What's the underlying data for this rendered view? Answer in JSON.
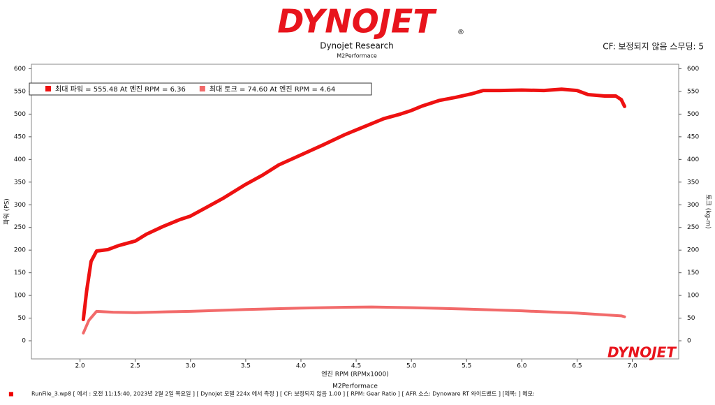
{
  "header": {
    "logo": "DYNOJET",
    "registered": "®",
    "company": "Dynojet Research",
    "subtitle": "M2Performace",
    "correction": "CF: 보정되지 않음 스무딩: 5"
  },
  "chart_data": {
    "type": "line",
    "xlabel": "엔진 RPM (RPMx1000)",
    "ylabel": "파워 (PS)",
    "y2label": "토크 (kg-m)",
    "below_label": "M2Performace",
    "watermark": "DYNOJET",
    "xlim": [
      1.56,
      7.42
    ],
    "ylim": [
      -40,
      610
    ],
    "y2lim": [
      -40,
      610
    ],
    "xticks": [
      {
        "value": 2,
        "label": "2.0"
      },
      2.5,
      {
        "value": 3,
        "label": "3.0"
      },
      3.5,
      {
        "value": 4,
        "label": "4.0"
      },
      4.5,
      {
        "value": 5,
        "label": "5.0"
      },
      5.5,
      {
        "value": 6,
        "label": "6.0"
      },
      6.5,
      {
        "value": 7,
        "label": "7.0"
      }
    ],
    "yticks": [
      0,
      50,
      100,
      150,
      200,
      250,
      300,
      350,
      400,
      450,
      500,
      550,
      600
    ],
    "y2ticks": [
      0,
      50,
      100,
      150,
      200,
      250,
      300,
      350,
      400,
      450,
      500,
      550,
      600
    ],
    "legend_position": "upper left",
    "series": [
      {
        "name": "최대 파워 = 555.48 At 엔진 RPM = 6.36",
        "color": "#ee1111",
        "width": 5,
        "axis": "y",
        "x": [
          2.03,
          2.06,
          2.1,
          2.15,
          2.25,
          2.35,
          2.5,
          2.6,
          2.75,
          2.9,
          3.0,
          3.15,
          3.3,
          3.5,
          3.65,
          3.8,
          4.0,
          4.2,
          4.4,
          4.6,
          4.75,
          4.9,
          5.0,
          5.1,
          5.25,
          5.4,
          5.55,
          5.65,
          5.8,
          6.0,
          6.2,
          6.36,
          6.5,
          6.6,
          6.75,
          6.85,
          6.9,
          6.93
        ],
        "values": [
          47,
          110,
          175,
          198,
          201,
          210,
          220,
          235,
          252,
          267,
          275,
          295,
          315,
          345,
          365,
          388,
          410,
          432,
          455,
          475,
          490,
          500,
          508,
          518,
          530,
          537,
          545,
          552,
          552,
          553,
          552,
          555,
          552,
          543,
          540,
          540,
          532,
          517
        ]
      },
      {
        "name": "최대 토크 = 74.60 At 엔진 RPM = 4.64",
        "color": "#f26a6a",
        "width": 4,
        "axis": "y2",
        "x": [
          2.03,
          2.08,
          2.15,
          2.3,
          2.5,
          2.8,
          3.0,
          3.5,
          4.0,
          4.4,
          4.64,
          5.0,
          5.5,
          6.0,
          6.5,
          6.9,
          6.93
        ],
        "values": [
          17,
          45,
          65,
          63,
          62,
          64,
          65,
          69,
          72,
          74,
          74.6,
          73,
          70,
          66,
          61,
          55,
          53
        ]
      }
    ]
  },
  "footer": {
    "text": "RunFile_3.wp8 [ 에서 : 오전 11:15:40, 2023년 2월 2일 목요일 ] [ Dynojet 모델 224x 에서 측정 ] [ CF: 보정되지 않음 1.00 ] [ RPM: Gear Ratio ] [ AFR 소스: Dynoware RT 와이드밴드 ] [제목: ] 메모:"
  }
}
